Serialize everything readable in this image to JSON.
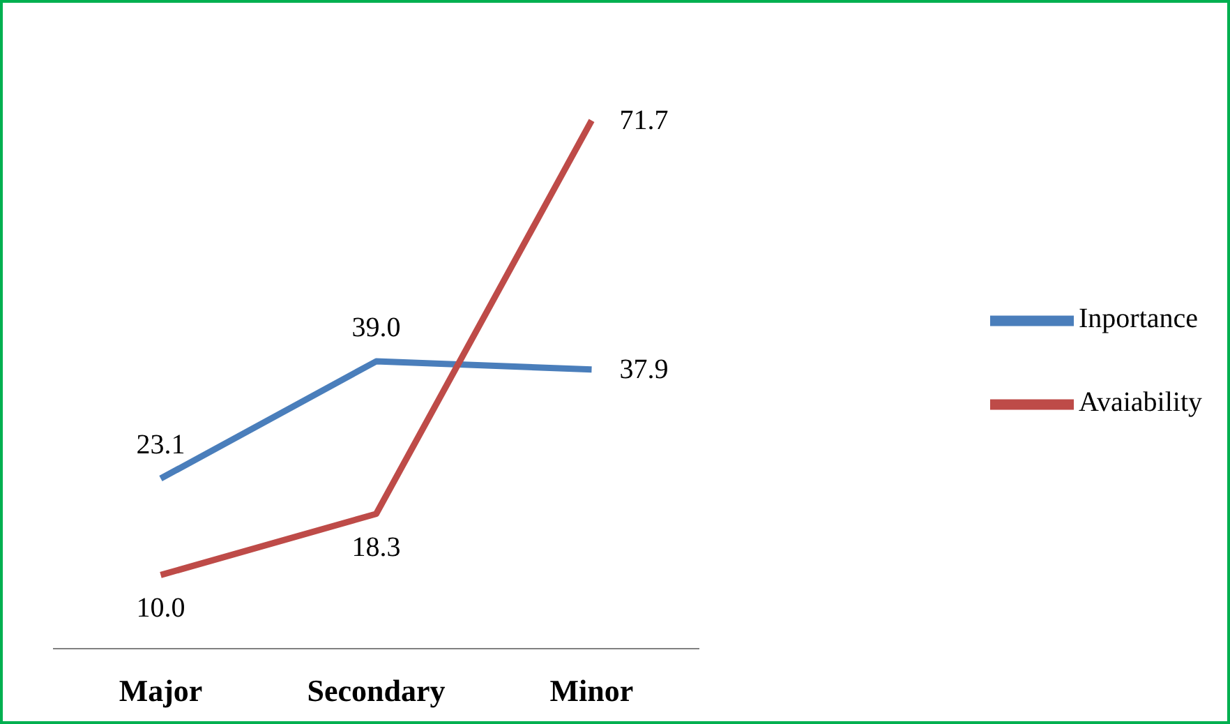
{
  "chart_data": {
    "type": "line",
    "categories": [
      "Major",
      "Secondary",
      "Minor"
    ],
    "series": [
      {
        "name": "Inportance",
        "color": "#4a7ebb",
        "values": [
          23.1,
          39.0,
          37.9
        ],
        "value_labels": [
          "23.1",
          "39.0",
          "37.9"
        ]
      },
      {
        "name": "Avaiability",
        "color": "#be4b48",
        "values": [
          10.0,
          18.3,
          71.7
        ],
        "value_labels": [
          "10.0",
          "18.3",
          "71.7"
        ]
      }
    ],
    "legend": "right",
    "marker": "none",
    "tick_labels": "x"
  }
}
